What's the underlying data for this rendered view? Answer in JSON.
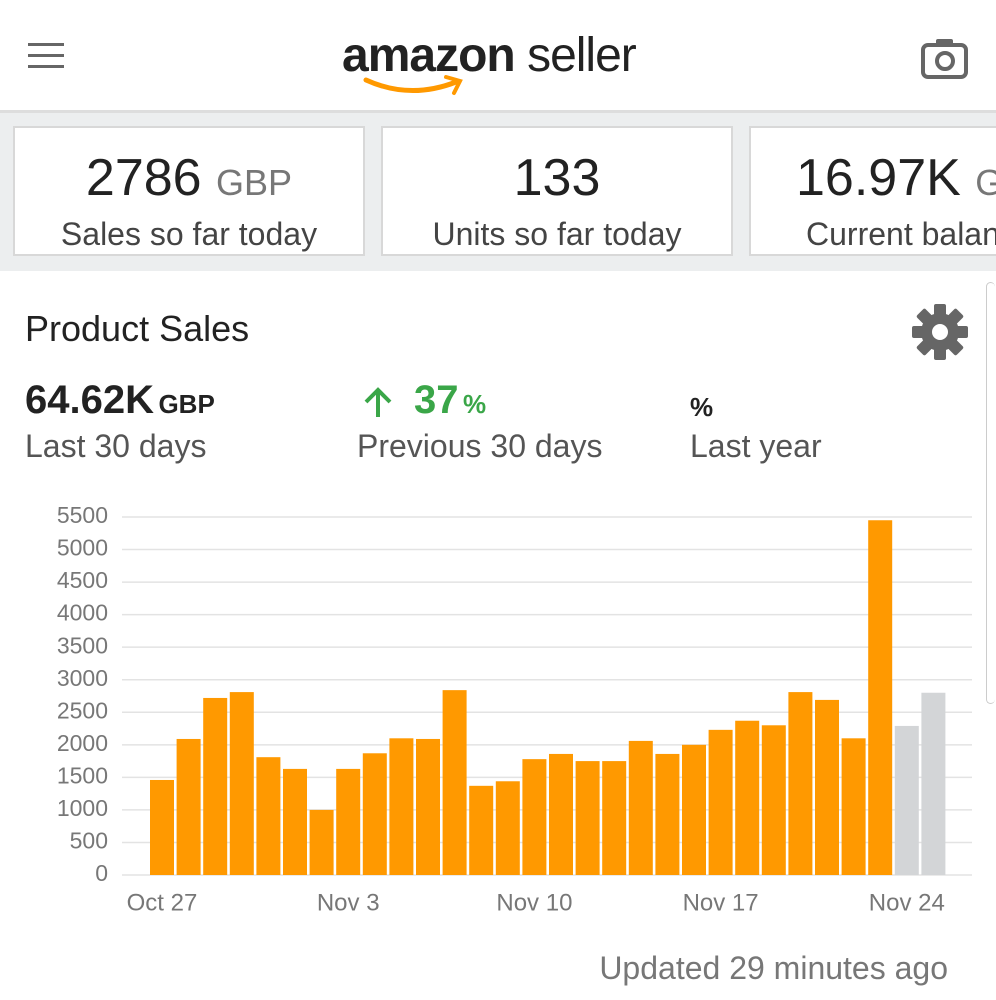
{
  "header": {
    "logo": "amazon",
    "logo_suffix": "seller"
  },
  "cards": [
    {
      "value": "2786",
      "unit": "GBP",
      "label": "Sales so far today"
    },
    {
      "value": "133",
      "label": "Units so far today"
    },
    {
      "value": "16.97K",
      "unit": "GBP",
      "label": "Current balance"
    }
  ],
  "product_sales": {
    "title": "Product Sales",
    "metrics": [
      {
        "value": "64.62K",
        "unit": "GBP",
        "label": "Last 30 days"
      },
      {
        "value": "37",
        "unit": "%",
        "label": "Previous 30 days"
      },
      {
        "unit": "%",
        "label": "Last year"
      }
    ]
  },
  "chart_data": {
    "type": "bar",
    "categories": [
      "Oct 27",
      null,
      null,
      null,
      null,
      null,
      null,
      "Nov 3",
      null,
      null,
      null,
      null,
      null,
      null,
      "Nov 10",
      null,
      null,
      null,
      null,
      null,
      null,
      "Nov 17",
      null,
      null,
      null,
      null,
      null,
      null,
      "Nov 24",
      null
    ],
    "values": [
      1460,
      2090,
      2720,
      2810,
      1810,
      1630,
      1000,
      1630,
      1870,
      2100,
      2090,
      2840,
      1370,
      1440,
      1780,
      1860,
      1750,
      1750,
      2060,
      1860,
      2000,
      2230,
      2370,
      2300,
      2810,
      2690,
      2100,
      5450,
      2290,
      2800
    ],
    "colors": [
      "#ff9900",
      "#ff9900",
      "#ff9900",
      "#ff9900",
      "#ff9900",
      "#ff9900",
      "#ff9900",
      "#ff9900",
      "#ff9900",
      "#ff9900",
      "#ff9900",
      "#ff9900",
      "#ff9900",
      "#ff9900",
      "#ff9900",
      "#ff9900",
      "#ff9900",
      "#ff9900",
      "#ff9900",
      "#ff9900",
      "#ff9900",
      "#ff9900",
      "#ff9900",
      "#ff9900",
      "#ff9900",
      "#ff9900",
      "#ff9900",
      "#ff9900",
      "#d3d5d7",
      "#d3d5d7"
    ],
    "ylim": [
      0,
      5500
    ],
    "yticks": [
      0,
      500,
      1000,
      1500,
      2000,
      2500,
      3000,
      3500,
      4000,
      4500,
      5000,
      5500
    ],
    "grid": true
  },
  "footer": {
    "updated": "Updated 29 minutes ago"
  }
}
